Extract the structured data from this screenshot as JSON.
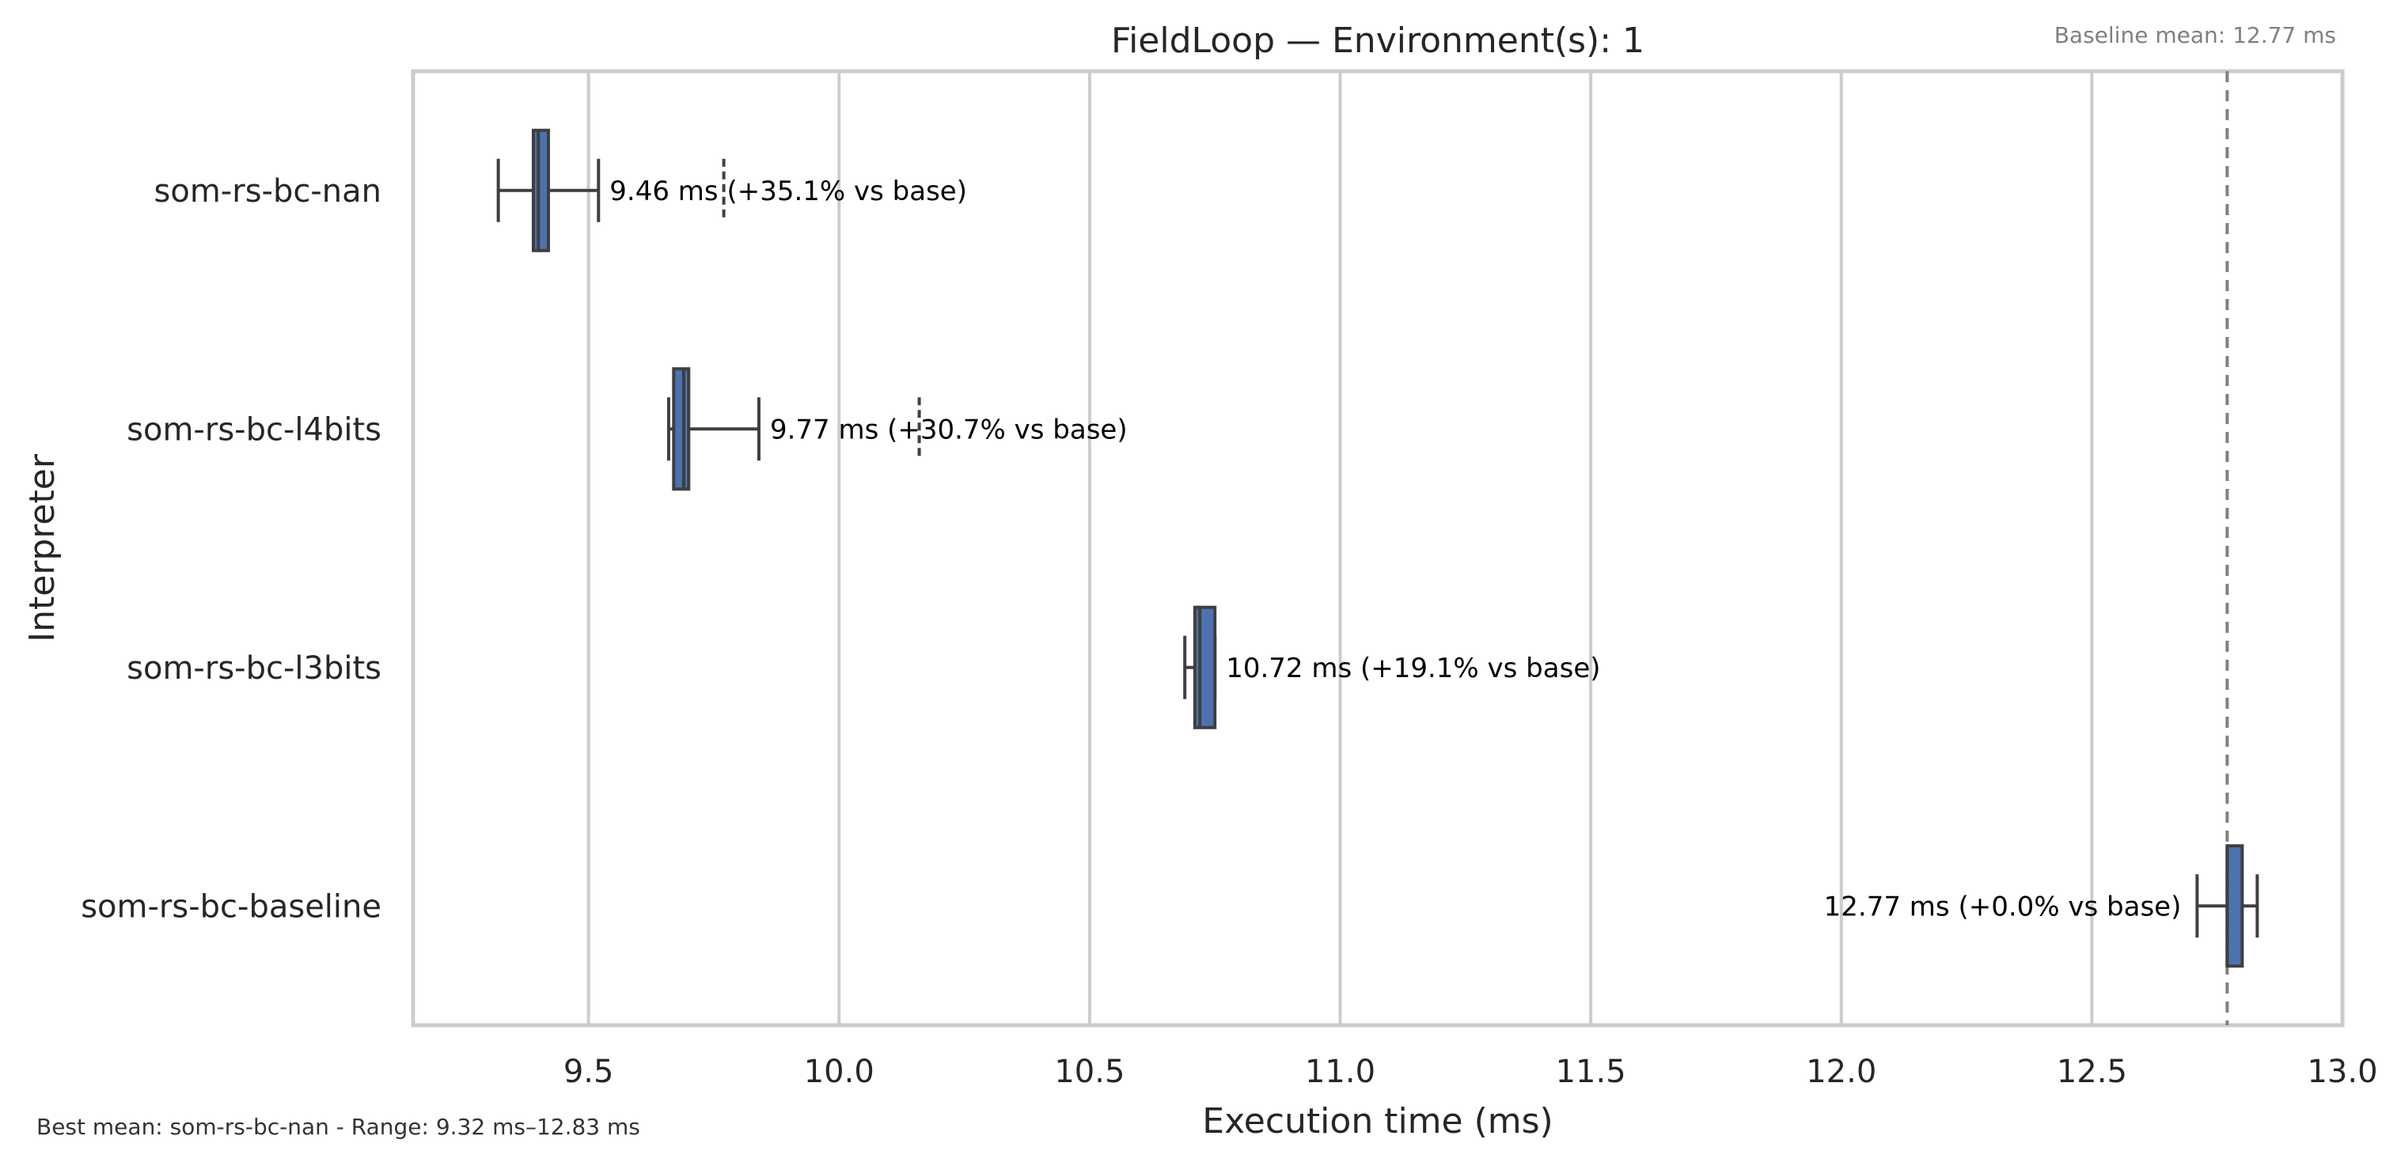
{
  "chart_data": {
    "type": "box",
    "title": "FieldLoop — Environment(s): 1",
    "xlabel": "Execution time (ms)",
    "ylabel": "Interpreter",
    "xlim": [
      9.15,
      13.0
    ],
    "xticks": [
      "9.5",
      "10.0",
      "10.5",
      "11.0",
      "11.5",
      "12.0",
      "12.5",
      "13.0"
    ],
    "grid": true,
    "orientation": "horizontal",
    "box_color": "#4c72b0",
    "categories": [
      "som-rs-bc-nan",
      "som-rs-bc-l4bits",
      "som-rs-bc-l3bits",
      "som-rs-bc-baseline"
    ],
    "boxes": [
      {
        "name": "som-rs-bc-nan",
        "whisker_low": 9.32,
        "q1": 9.39,
        "median": 9.4,
        "q3": 9.42,
        "whisker_high": 9.52,
        "mean": 9.46,
        "outliers": [
          9.77
        ],
        "label": "9.46 ms  (+35.1% vs base)"
      },
      {
        "name": "som-rs-bc-l4bits",
        "whisker_low": 9.66,
        "q1": 9.67,
        "median": 9.69,
        "q3": 9.7,
        "whisker_high": 9.84,
        "mean": 9.77,
        "outliers": [
          10.16
        ],
        "label": "9.77 ms  (+30.7% vs base)"
      },
      {
        "name": "som-rs-bc-l3bits",
        "whisker_low": 10.69,
        "q1": 10.71,
        "median": 10.72,
        "q3": 10.75,
        "whisker_high": 10.75,
        "mean": 10.72,
        "outliers": [],
        "label": "10.72 ms  (+19.1% vs base)"
      },
      {
        "name": "som-rs-bc-baseline",
        "whisker_low": 12.71,
        "q1": 12.77,
        "median": 12.77,
        "q3": 12.8,
        "whisker_high": 12.83,
        "mean": 12.77,
        "outliers": [],
        "label": "12.77 ms  (+0.0% vs base)"
      }
    ],
    "baseline_mean": 12.77,
    "baseline_note": "Baseline mean: 12.77 ms",
    "footnote": "Best mean: som-rs-bc-nan - Range: 9.32 ms–12.83 ms"
  }
}
